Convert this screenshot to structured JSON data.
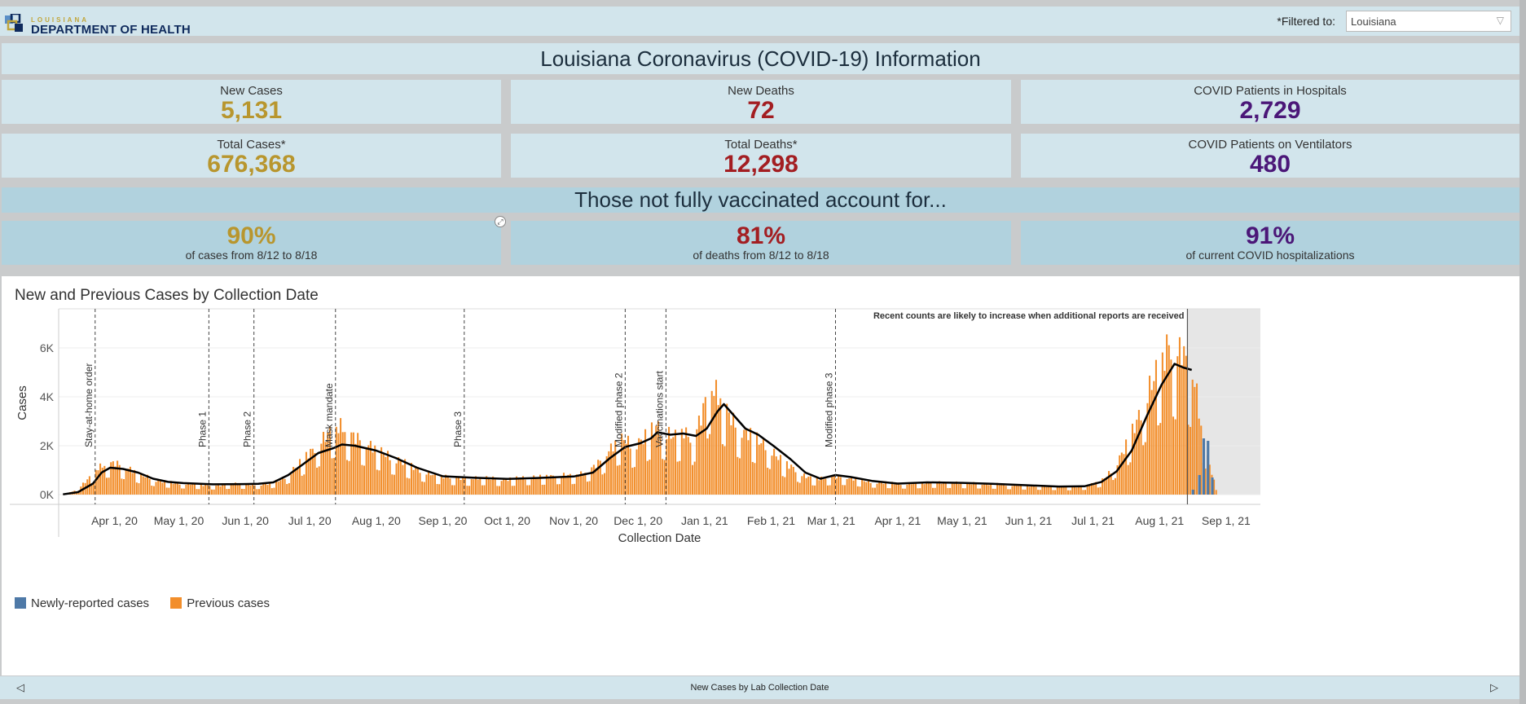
{
  "header": {
    "logo_small": "LOUISIANA",
    "logo_big": "DEPARTMENT OF HEALTH",
    "filter_label": "*Filtered to:",
    "filter_value": "Louisiana"
  },
  "title": "Louisiana Coronavirus (COVID-19) Information",
  "stats": {
    "new_cases": {
      "label": "New Cases",
      "value": "5,131"
    },
    "new_deaths": {
      "label": "New Deaths",
      "value": "72"
    },
    "hospitalized": {
      "label": "COVID Patients in Hospitals",
      "value": "2,729"
    },
    "total_cases": {
      "label": "Total Cases*",
      "value": "676,368"
    },
    "total_deaths": {
      "label": "Total Deaths*",
      "value": "12,298"
    },
    "ventilators": {
      "label": "COVID Patients on Ventilators",
      "value": "480"
    }
  },
  "vax": {
    "heading": "Those not fully vaccinated account for...",
    "cases": {
      "value": "90%",
      "sub": "of cases from 8/12 to 8/18"
    },
    "deaths": {
      "value": "81%",
      "sub": "of deaths from 8/12 to 8/18"
    },
    "hosp": {
      "value": "91%",
      "sub": "of current COVID hospitalizations"
    }
  },
  "colors": {
    "gold": "#b8962e",
    "red": "#a31e22",
    "purple": "#4b1778",
    "bar_previous": "#f28e2b",
    "bar_new": "#4e79a7",
    "avg_line": "#000000"
  },
  "chart_data": {
    "type": "bar",
    "title": "New and Previous Cases by Collection Date",
    "xlabel": "Collection Date",
    "ylabel": "Cases",
    "ylim": [
      0,
      7500
    ],
    "yticks": [
      0,
      2000,
      4000,
      6000
    ],
    "ytick_labels": [
      "0K",
      "2K",
      "4K",
      "6K"
    ],
    "x_tick_labels": [
      "Apr 1, 20",
      "May 1, 20",
      "Jun 1, 20",
      "Jul 1, 20",
      "Aug 1, 20",
      "Sep 1, 20",
      "Oct 1, 20",
      "Nov 1, 20",
      "Dec 1, 20",
      "Jan 1, 21",
      "Feb 1, 21",
      "Mar 1, 21",
      "Apr 1, 21",
      "May 1, 21",
      "Jun 1, 21",
      "Jul 1, 21",
      "Aug 1, 21",
      "Sep 1, 21"
    ],
    "x_start_date": "2020-03-06",
    "x_end_date": "2021-09-17",
    "grid": true,
    "legend_position": "bottom-left",
    "legend": [
      "Newly-reported cases",
      "Previous cases"
    ],
    "annotation": "Recent counts are likely to increase when additional reports are received",
    "annotation_date": "2021-08-14",
    "events": [
      {
        "date": "2020-03-23",
        "label": "Stay-at-home order"
      },
      {
        "date": "2020-05-15",
        "label": "Phase 1"
      },
      {
        "date": "2020-06-05",
        "label": "Phase 2"
      },
      {
        "date": "2020-07-13",
        "label": "Mask mandate"
      },
      {
        "date": "2020-09-11",
        "label": "Phase 3"
      },
      {
        "date": "2020-11-25",
        "label": "Modified phase 2"
      },
      {
        "date": "2020-12-14",
        "label": "Vaccinations start"
      },
      {
        "date": "2021-03-03",
        "label": "Modified phase 3"
      }
    ],
    "series": [
      {
        "name": "Previous cases",
        "points": [
          [
            "2020-03-08",
            20
          ],
          [
            "2020-03-12",
            120
          ],
          [
            "2020-03-16",
            350
          ],
          [
            "2020-03-20",
            700
          ],
          [
            "2020-03-24",
            1100
          ],
          [
            "2020-03-28",
            1250
          ],
          [
            "2020-04-01",
            1300
          ],
          [
            "2020-04-05",
            1150
          ],
          [
            "2020-04-09",
            1000
          ],
          [
            "2020-04-13",
            800
          ],
          [
            "2020-04-17",
            700
          ],
          [
            "2020-04-21",
            560
          ],
          [
            "2020-04-25",
            520
          ],
          [
            "2020-04-29",
            480
          ],
          [
            "2020-05-03",
            450
          ],
          [
            "2020-05-07",
            430
          ],
          [
            "2020-05-11",
            400
          ],
          [
            "2020-05-15",
            380
          ],
          [
            "2020-05-19",
            370
          ],
          [
            "2020-05-23",
            420
          ],
          [
            "2020-05-27",
            440
          ],
          [
            "2020-06-01",
            420
          ],
          [
            "2020-06-05",
            400
          ],
          [
            "2020-06-09",
            420
          ],
          [
            "2020-06-13",
            480
          ],
          [
            "2020-06-17",
            600
          ],
          [
            "2020-06-21",
            850
          ],
          [
            "2020-06-25",
            1200
          ],
          [
            "2020-06-29",
            1600
          ],
          [
            "2020-07-03",
            1900
          ],
          [
            "2020-07-07",
            2300
          ],
          [
            "2020-07-11",
            2700
          ],
          [
            "2020-07-15",
            2800
          ],
          [
            "2020-07-19",
            2500
          ],
          [
            "2020-07-23",
            2300
          ],
          [
            "2020-07-27",
            2100
          ],
          [
            "2020-07-31",
            1900
          ],
          [
            "2020-08-04",
            1700
          ],
          [
            "2020-08-08",
            1500
          ],
          [
            "2020-08-12",
            1400
          ],
          [
            "2020-08-16",
            1200
          ],
          [
            "2020-08-20",
            1050
          ],
          [
            "2020-08-24",
            900
          ],
          [
            "2020-08-28",
            800
          ],
          [
            "2020-09-01",
            750
          ],
          [
            "2020-09-05",
            700
          ],
          [
            "2020-09-09",
            680
          ],
          [
            "2020-09-13",
            650
          ],
          [
            "2020-09-17",
            680
          ],
          [
            "2020-09-21",
            700
          ],
          [
            "2020-09-25",
            650
          ],
          [
            "2020-09-29",
            620
          ],
          [
            "2020-10-03",
            650
          ],
          [
            "2020-10-07",
            680
          ],
          [
            "2020-10-11",
            700
          ],
          [
            "2020-10-15",
            720
          ],
          [
            "2020-10-19",
            740
          ],
          [
            "2020-10-23",
            760
          ],
          [
            "2020-10-27",
            800
          ],
          [
            "2020-10-31",
            780
          ],
          [
            "2020-11-04",
            850
          ],
          [
            "2020-11-08",
            1000
          ],
          [
            "2020-11-12",
            1300
          ],
          [
            "2020-11-16",
            1700
          ],
          [
            "2020-11-20",
            2100
          ],
          [
            "2020-11-24",
            2300
          ],
          [
            "2020-11-28",
            2000
          ],
          [
            "2020-12-02",
            2200
          ],
          [
            "2020-12-06",
            2600
          ],
          [
            "2020-12-10",
            2800
          ],
          [
            "2020-12-14",
            2500
          ],
          [
            "2020-12-18",
            2400
          ],
          [
            "2020-12-22",
            2600
          ],
          [
            "2020-12-26",
            2200
          ],
          [
            "2020-12-30",
            3200
          ],
          [
            "2021-01-03",
            4500
          ],
          [
            "2021-01-06",
            4200
          ],
          [
            "2021-01-10",
            3600
          ],
          [
            "2021-01-14",
            3000
          ],
          [
            "2021-01-18",
            2600
          ],
          [
            "2021-01-22",
            2500
          ],
          [
            "2021-01-26",
            2200
          ],
          [
            "2021-01-30",
            2000
          ],
          [
            "2021-02-03",
            1600
          ],
          [
            "2021-02-07",
            1300
          ],
          [
            "2021-02-11",
            1100
          ],
          [
            "2021-02-15",
            800
          ],
          [
            "2021-02-19",
            700
          ],
          [
            "2021-02-23",
            650
          ],
          [
            "2021-02-27",
            680
          ],
          [
            "2021-03-03",
            750
          ],
          [
            "2021-03-07",
            700
          ],
          [
            "2021-03-11",
            650
          ],
          [
            "2021-03-15",
            580
          ],
          [
            "2021-03-19",
            520
          ],
          [
            "2021-03-23",
            500
          ],
          [
            "2021-03-27",
            480
          ],
          [
            "2021-03-31",
            460
          ],
          [
            "2021-04-04",
            440
          ],
          [
            "2021-04-08",
            460
          ],
          [
            "2021-04-12",
            480
          ],
          [
            "2021-04-16",
            500
          ],
          [
            "2021-04-20",
            500
          ],
          [
            "2021-04-24",
            490
          ],
          [
            "2021-04-28",
            480
          ],
          [
            "2021-05-02",
            470
          ],
          [
            "2021-05-06",
            460
          ],
          [
            "2021-05-10",
            450
          ],
          [
            "2021-05-14",
            440
          ],
          [
            "2021-05-18",
            420
          ],
          [
            "2021-05-22",
            400
          ],
          [
            "2021-05-26",
            390
          ],
          [
            "2021-05-30",
            370
          ],
          [
            "2021-06-03",
            360
          ],
          [
            "2021-06-07",
            350
          ],
          [
            "2021-06-11",
            340
          ],
          [
            "2021-06-15",
            330
          ],
          [
            "2021-06-19",
            320
          ],
          [
            "2021-06-23",
            330
          ],
          [
            "2021-06-27",
            350
          ],
          [
            "2021-07-01",
            450
          ],
          [
            "2021-07-05",
            600
          ],
          [
            "2021-07-09",
            950
          ],
          [
            "2021-07-13",
            1500
          ],
          [
            "2021-07-17",
            2200
          ],
          [
            "2021-07-21",
            3000
          ],
          [
            "2021-07-25",
            3900
          ],
          [
            "2021-07-29",
            4800
          ],
          [
            "2021-08-02",
            5500
          ],
          [
            "2021-08-05",
            6200
          ],
          [
            "2021-08-08",
            5600
          ],
          [
            "2021-08-11",
            6000
          ],
          [
            "2021-08-14",
            5200
          ],
          [
            "2021-08-17",
            4700
          ],
          [
            "2021-08-20",
            2800
          ],
          [
            "2021-08-23",
            1500
          ],
          [
            "2021-08-25",
            900
          ],
          [
            "2021-08-27",
            200
          ]
        ]
      },
      {
        "name": "Newly-reported cases",
        "points": [
          [
            "2021-08-16",
            200
          ],
          [
            "2021-08-19",
            800
          ],
          [
            "2021-08-21",
            2300
          ],
          [
            "2021-08-23",
            2200
          ],
          [
            "2021-08-25",
            700
          ]
        ]
      }
    ],
    "moving_average": [
      [
        "2020-03-08",
        10
      ],
      [
        "2020-03-15",
        100
      ],
      [
        "2020-03-22",
        450
      ],
      [
        "2020-03-26",
        900
      ],
      [
        "2020-03-30",
        1100
      ],
      [
        "2020-04-05",
        1050
      ],
      [
        "2020-04-12",
        900
      ],
      [
        "2020-04-19",
        650
      ],
      [
        "2020-04-26",
        520
      ],
      [
        "2020-05-03",
        470
      ],
      [
        "2020-05-17",
        420
      ],
      [
        "2020-05-31",
        430
      ],
      [
        "2020-06-07",
        440
      ],
      [
        "2020-06-14",
        500
      ],
      [
        "2020-06-21",
        800
      ],
      [
        "2020-06-28",
        1250
      ],
      [
        "2020-07-05",
        1700
      ],
      [
        "2020-07-12",
        1900
      ],
      [
        "2020-07-16",
        2050
      ],
      [
        "2020-07-22",
        2000
      ],
      [
        "2020-08-01",
        1800
      ],
      [
        "2020-08-10",
        1500
      ],
      [
        "2020-08-20",
        1100
      ],
      [
        "2020-09-01",
        750
      ],
      [
        "2020-09-15",
        690
      ],
      [
        "2020-10-01",
        640
      ],
      [
        "2020-10-15",
        680
      ],
      [
        "2020-11-01",
        740
      ],
      [
        "2020-11-10",
        900
      ],
      [
        "2020-11-18",
        1500
      ],
      [
        "2020-11-25",
        1950
      ],
      [
        "2020-12-02",
        2100
      ],
      [
        "2020-12-07",
        2300
      ],
      [
        "2020-12-10",
        2550
      ],
      [
        "2020-12-16",
        2450
      ],
      [
        "2020-12-22",
        2500
      ],
      [
        "2020-12-28",
        2400
      ],
      [
        "2021-01-02",
        2700
      ],
      [
        "2021-01-07",
        3400
      ],
      [
        "2021-01-10",
        3700
      ],
      [
        "2021-01-14",
        3300
      ],
      [
        "2021-01-20",
        2700
      ],
      [
        "2021-01-26",
        2450
      ],
      [
        "2021-02-02",
        2000
      ],
      [
        "2021-02-10",
        1450
      ],
      [
        "2021-02-17",
        900
      ],
      [
        "2021-02-24",
        650
      ],
      [
        "2021-03-03",
        800
      ],
      [
        "2021-03-10",
        720
      ],
      [
        "2021-03-20",
        560
      ],
      [
        "2021-04-01",
        450
      ],
      [
        "2021-04-15",
        500
      ],
      [
        "2021-05-01",
        480
      ],
      [
        "2021-05-15",
        440
      ],
      [
        "2021-06-01",
        380
      ],
      [
        "2021-06-15",
        330
      ],
      [
        "2021-06-27",
        340
      ],
      [
        "2021-07-05",
        520
      ],
      [
        "2021-07-12",
        950
      ],
      [
        "2021-07-19",
        1800
      ],
      [
        "2021-07-26",
        3200
      ],
      [
        "2021-08-02",
        4500
      ],
      [
        "2021-08-08",
        5350
      ],
      [
        "2021-08-12",
        5200
      ],
      [
        "2021-08-16",
        5100
      ]
    ]
  },
  "tabs": {
    "current": "New Cases by Lab Collection Date",
    "prev": "◁",
    "next": "▷"
  }
}
